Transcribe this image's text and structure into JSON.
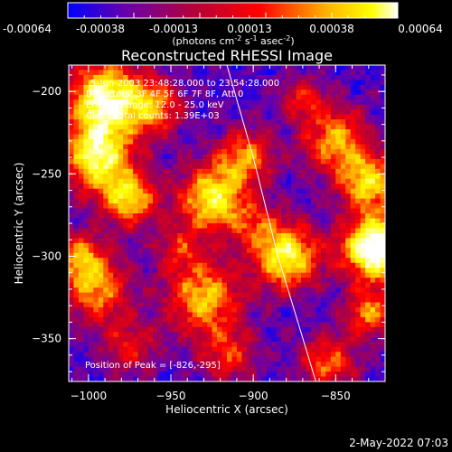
{
  "footer": {
    "date": "2-May-2022 07:03"
  },
  "colorbar": {
    "min": -0.00064,
    "max": 0.00064,
    "tick_labels": [
      "-0.00064",
      "-0.00038",
      "-0.00013",
      "0.00013",
      "0.00038",
      "0.00064"
    ],
    "units_parts": [
      "(photons cm",
      "-2",
      " s",
      "-1",
      " asec",
      "-2",
      ")"
    ],
    "colormap": [
      "#0000ff",
      "#6a00a8",
      "#b3003a",
      "#ff0000",
      "#ffb000",
      "#ffff00",
      "#ffffff"
    ]
  },
  "chart_data": {
    "type": "heatmap",
    "title": "Reconstructed RHESSI Image",
    "xlabel": "Heliocentric X (arcsec)",
    "ylabel": "Heliocentric Y (arcsec)",
    "xlim": [
      -1012,
      -820
    ],
    "ylim": [
      -376,
      -184
    ],
    "x_ticks": [
      -1000,
      -950,
      -900,
      -850
    ],
    "y_ticks": [
      -350,
      -300,
      -250,
      -200
    ],
    "annotations": {
      "line1": "5-Jun-2003 23:48:28.000 to 23:54:28.000",
      "line2": "Detectors: 3F 4F 5F 6F 7F 8F, Att 0",
      "line3": "Energy Range: 12.0 - 25.0 keV",
      "line4": "Clean    Total counts: 1.39E+03",
      "peak": "Position of Peak = [-826,-295]"
    },
    "peak_position": [
      -826,
      -295
    ],
    "grid_cols": 64,
    "grid_rows": 64,
    "hotspots": [
      {
        "x": -990,
        "y": -205,
        "amp": 1.0,
        "sigma": 16
      },
      {
        "x": -995,
        "y": -240,
        "amp": 0.9,
        "sigma": 14
      },
      {
        "x": -975,
        "y": -265,
        "amp": 0.75,
        "sigma": 12
      },
      {
        "x": -960,
        "y": -210,
        "amp": 0.55,
        "sigma": 12
      },
      {
        "x": -995,
        "y": -320,
        "amp": 0.65,
        "sigma": 14
      },
      {
        "x": -930,
        "y": -325,
        "amp": 0.7,
        "sigma": 16
      },
      {
        "x": -925,
        "y": -265,
        "amp": 0.85,
        "sigma": 14
      },
      {
        "x": -905,
        "y": -240,
        "amp": 0.6,
        "sigma": 12
      },
      {
        "x": -880,
        "y": -300,
        "amp": 0.9,
        "sigma": 14
      },
      {
        "x": -850,
        "y": -230,
        "amp": 0.65,
        "sigma": 14
      },
      {
        "x": -826,
        "y": -295,
        "amp": 1.2,
        "sigma": 14
      },
      {
        "x": -830,
        "y": -255,
        "amp": 0.75,
        "sigma": 12
      },
      {
        "x": -830,
        "y": -335,
        "amp": 0.6,
        "sigma": 10
      },
      {
        "x": -855,
        "y": -365,
        "amp": 0.55,
        "sigma": 12
      },
      {
        "x": -915,
        "y": -360,
        "amp": 0.45,
        "sigma": 12
      },
      {
        "x": -975,
        "y": -355,
        "amp": 0.4,
        "sigma": 12
      },
      {
        "x": -1005,
        "y": -300,
        "amp": 0.55,
        "sigma": 10
      },
      {
        "x": -945,
        "y": -295,
        "amp": 0.35,
        "sigma": 10
      },
      {
        "x": -870,
        "y": -205,
        "amp": 0.4,
        "sigma": 10
      },
      {
        "x": -900,
        "y": -280,
        "amp": 0.35,
        "sigma": 10
      }
    ],
    "limb": [
      {
        "x": -916,
        "y": -184
      },
      {
        "x": -900,
        "y": -240
      },
      {
        "x": -885,
        "y": -300
      },
      {
        "x": -862,
        "y": -376
      }
    ]
  }
}
